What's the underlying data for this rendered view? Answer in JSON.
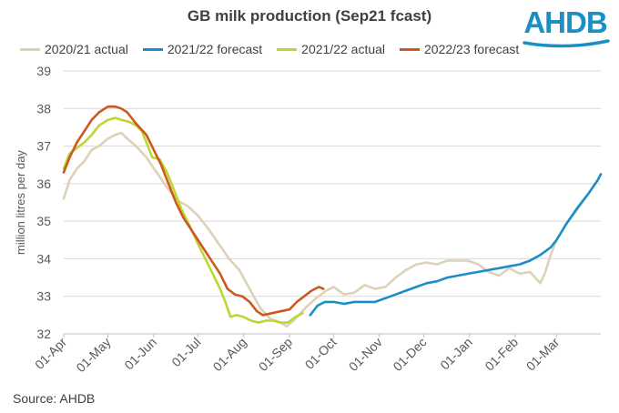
{
  "title": "GB milk production (Sep21 fcast)",
  "logo": "AHDB",
  "source": "Source: AHDB",
  "chart_data": {
    "type": "line",
    "title": "GB milk production (Sep21 fcast)",
    "ylabel": "million litres per day",
    "xlabel": "",
    "ylim": [
      32,
      39
    ],
    "yticks": [
      32,
      33,
      34,
      35,
      36,
      37,
      38,
      39
    ],
    "x_tick_labels": [
      "01-Apr",
      "01-May",
      "01-Jun",
      "01-Jul",
      "01-Aug",
      "01-Sep",
      "01-Oct",
      "01-Nov",
      "01-Dec",
      "01-Jan",
      "01-Feb",
      "01-Mar"
    ],
    "legend_position": "top",
    "grid": "horizontal",
    "series": [
      {
        "name": "2020/21 actual",
        "color": "#ddd2b7",
        "points": [
          [
            "01-Apr",
            35.6
          ],
          [
            "05-Apr",
            36.1
          ],
          [
            "10-Apr",
            36.4
          ],
          [
            "15-Apr",
            36.6
          ],
          [
            "20-Apr",
            36.9
          ],
          [
            "25-Apr",
            37.0
          ],
          [
            "01-May",
            37.2
          ],
          [
            "06-May",
            37.3
          ],
          [
            "10-May",
            37.35
          ],
          [
            "14-May",
            37.2
          ],
          [
            "20-May",
            37.0
          ],
          [
            "27-May",
            36.7
          ],
          [
            "03-Jun",
            36.3
          ],
          [
            "10-Jun",
            35.9
          ],
          [
            "17-Jun",
            35.55
          ],
          [
            "24-Jun",
            35.4
          ],
          [
            "01-Jul",
            35.15
          ],
          [
            "08-Jul",
            34.8
          ],
          [
            "15-Jul",
            34.4
          ],
          [
            "22-Jul",
            34.0
          ],
          [
            "29-Jul",
            33.7
          ],
          [
            "05-Aug",
            33.2
          ],
          [
            "12-Aug",
            32.7
          ],
          [
            "19-Aug",
            32.4
          ],
          [
            "26-Aug",
            32.3
          ],
          [
            "30-Aug",
            32.2
          ],
          [
            "05-Sep",
            32.4
          ],
          [
            "12-Sep",
            32.7
          ],
          [
            "19-Sep",
            32.95
          ],
          [
            "26-Sep",
            33.15
          ],
          [
            "01-Oct",
            33.25
          ],
          [
            "08-Oct",
            33.05
          ],
          [
            "15-Oct",
            33.1
          ],
          [
            "22-Oct",
            33.3
          ],
          [
            "29-Oct",
            33.2
          ],
          [
            "05-Nov",
            33.25
          ],
          [
            "12-Nov",
            33.5
          ],
          [
            "19-Nov",
            33.7
          ],
          [
            "26-Nov",
            33.85
          ],
          [
            "03-Dec",
            33.9
          ],
          [
            "10-Dec",
            33.85
          ],
          [
            "17-Dec",
            33.95
          ],
          [
            "24-Dec",
            33.95
          ],
          [
            "31-Dec",
            33.95
          ],
          [
            "07-Jan",
            33.85
          ],
          [
            "14-Jan",
            33.65
          ],
          [
            "21-Jan",
            33.55
          ],
          [
            "28-Jan",
            33.75
          ],
          [
            "04-Feb",
            33.6
          ],
          [
            "11-Feb",
            33.65
          ],
          [
            "18-Feb",
            33.35
          ],
          [
            "21-Feb",
            33.6
          ],
          [
            "25-Feb",
            34.1
          ],
          [
            "01-Mar",
            34.5
          ],
          [
            "08-Mar",
            34.95
          ],
          [
            "15-Mar",
            35.3
          ],
          [
            "22-Mar",
            35.7
          ],
          [
            "29-Mar",
            36.1
          ],
          [
            "31-Mar",
            36.25
          ]
        ]
      },
      {
        "name": "2021/22 forecast",
        "color": "#1b8fc5",
        "points": [
          [
            "15-Sep",
            32.5
          ],
          [
            "20-Sep",
            32.75
          ],
          [
            "25-Sep",
            32.85
          ],
          [
            "01-Oct",
            32.85
          ],
          [
            "08-Oct",
            32.8
          ],
          [
            "15-Oct",
            32.85
          ],
          [
            "22-Oct",
            32.85
          ],
          [
            "29-Oct",
            32.85
          ],
          [
            "05-Nov",
            32.95
          ],
          [
            "12-Nov",
            33.05
          ],
          [
            "19-Nov",
            33.15
          ],
          [
            "26-Nov",
            33.25
          ],
          [
            "03-Dec",
            33.35
          ],
          [
            "10-Dec",
            33.4
          ],
          [
            "17-Dec",
            33.5
          ],
          [
            "24-Dec",
            33.55
          ],
          [
            "31-Dec",
            33.6
          ],
          [
            "07-Jan",
            33.65
          ],
          [
            "14-Jan",
            33.7
          ],
          [
            "21-Jan",
            33.75
          ],
          [
            "28-Jan",
            33.8
          ],
          [
            "04-Feb",
            33.85
          ],
          [
            "11-Feb",
            33.95
          ],
          [
            "18-Feb",
            34.1
          ],
          [
            "25-Feb",
            34.3
          ],
          [
            "01-Mar",
            34.5
          ],
          [
            "08-Mar",
            34.95
          ],
          [
            "15-Mar",
            35.35
          ],
          [
            "22-Mar",
            35.7
          ],
          [
            "29-Mar",
            36.1
          ],
          [
            "31-Mar",
            36.25
          ]
        ]
      },
      {
        "name": "2021/22 actual",
        "color": "#bed630",
        "points": [
          [
            "01-Apr",
            36.4
          ],
          [
            "05-Apr",
            36.8
          ],
          [
            "10-Apr",
            36.95
          ],
          [
            "15-Apr",
            37.1
          ],
          [
            "20-Apr",
            37.3
          ],
          [
            "25-Apr",
            37.55
          ],
          [
            "01-May",
            37.7
          ],
          [
            "06-May",
            37.75
          ],
          [
            "10-May",
            37.7
          ],
          [
            "15-May",
            37.65
          ],
          [
            "20-May",
            37.55
          ],
          [
            "24-May",
            37.4
          ],
          [
            "27-May",
            37.1
          ],
          [
            "31-May",
            36.7
          ],
          [
            "05-Jun",
            36.65
          ],
          [
            "10-Jun",
            36.3
          ],
          [
            "15-Jun",
            35.8
          ],
          [
            "20-Jun",
            35.3
          ],
          [
            "25-Jun",
            34.9
          ],
          [
            "01-Jul",
            34.4
          ],
          [
            "06-Jul",
            34.0
          ],
          [
            "11-Jul",
            33.6
          ],
          [
            "16-Jul",
            33.2
          ],
          [
            "20-Jul",
            32.8
          ],
          [
            "23-Jul",
            32.45
          ],
          [
            "27-Jul",
            32.5
          ],
          [
            "01-Aug",
            32.45
          ],
          [
            "06-Aug",
            32.35
          ],
          [
            "11-Aug",
            32.3
          ],
          [
            "16-Aug",
            32.35
          ],
          [
            "21-Aug",
            32.35
          ],
          [
            "26-Aug",
            32.3
          ],
          [
            "31-Aug",
            32.3
          ],
          [
            "05-Sep",
            32.45
          ],
          [
            "10-Sep",
            32.55
          ]
        ]
      },
      {
        "name": "2022/23 forecast",
        "color": "#cc5a1f",
        "points": [
          [
            "01-Apr",
            36.3
          ],
          [
            "05-Apr",
            36.7
          ],
          [
            "10-Apr",
            37.1
          ],
          [
            "15-Apr",
            37.4
          ],
          [
            "20-Apr",
            37.7
          ],
          [
            "25-Apr",
            37.9
          ],
          [
            "01-May",
            38.05
          ],
          [
            "06-May",
            38.05
          ],
          [
            "10-May",
            38.0
          ],
          [
            "14-May",
            37.9
          ],
          [
            "20-May",
            37.6
          ],
          [
            "27-May",
            37.3
          ],
          [
            "01-Jun",
            36.9
          ],
          [
            "06-Jun",
            36.5
          ],
          [
            "11-Jun",
            36.0
          ],
          [
            "16-Jun",
            35.5
          ],
          [
            "21-Jun",
            35.1
          ],
          [
            "26-Jun",
            34.8
          ],
          [
            "01-Jul",
            34.5
          ],
          [
            "06-Jul",
            34.2
          ],
          [
            "11-Jul",
            33.9
          ],
          [
            "16-Jul",
            33.6
          ],
          [
            "21-Jul",
            33.2
          ],
          [
            "26-Jul",
            33.05
          ],
          [
            "31-Jul",
            33.0
          ],
          [
            "05-Aug",
            32.85
          ],
          [
            "10-Aug",
            32.6
          ],
          [
            "14-Aug",
            32.5
          ],
          [
            "20-Aug",
            32.55
          ],
          [
            "26-Aug",
            32.6
          ],
          [
            "01-Sep",
            32.65
          ],
          [
            "06-Sep",
            32.85
          ],
          [
            "11-Sep",
            33.0
          ],
          [
            "16-Sep",
            33.15
          ],
          [
            "21-Sep",
            33.25
          ],
          [
            "24-Sep",
            33.2
          ]
        ]
      }
    ]
  }
}
